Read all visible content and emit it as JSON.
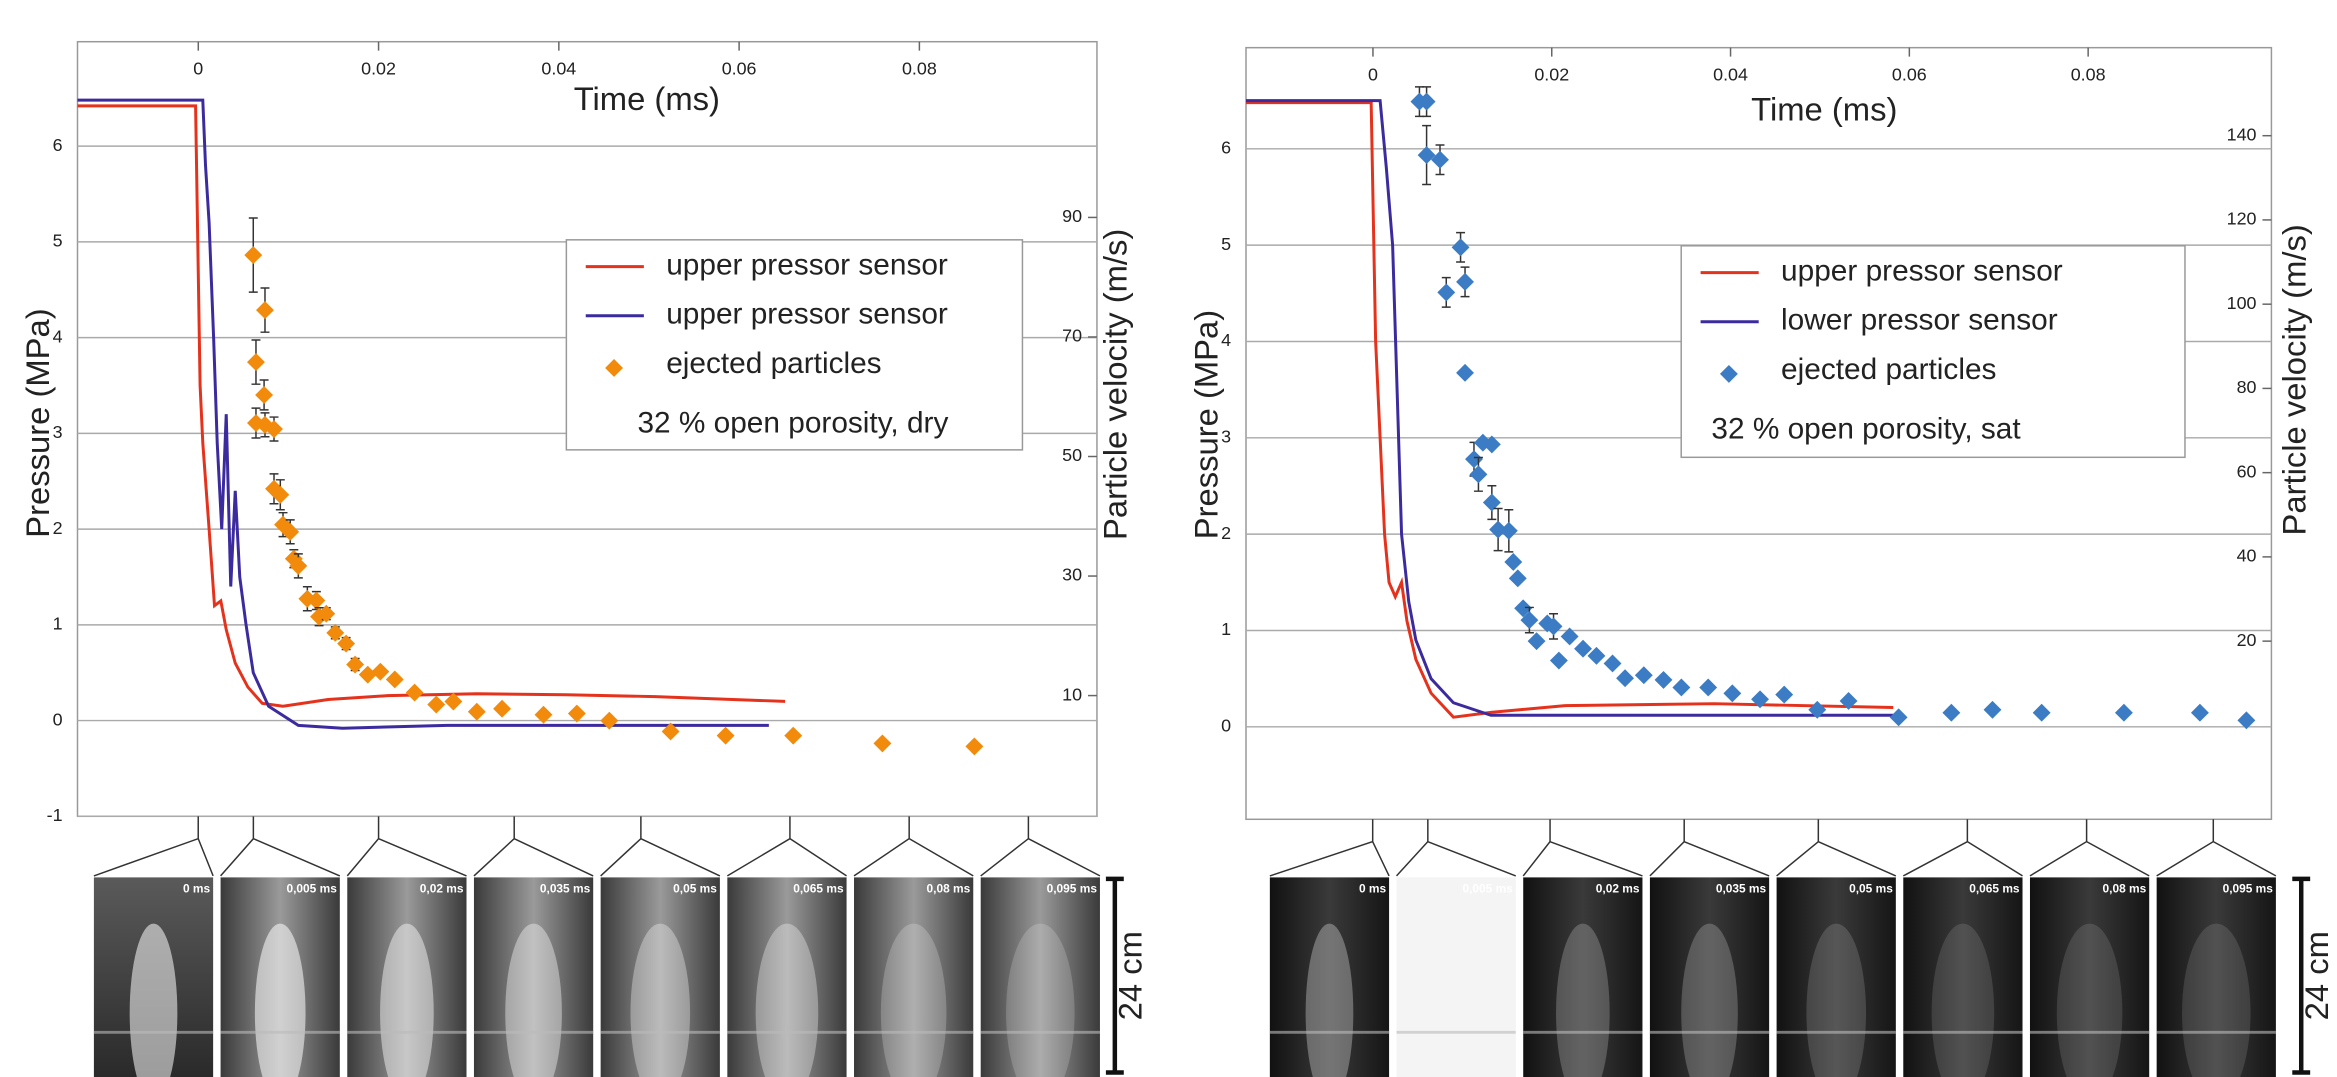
{
  "chart_data": [
    {
      "type": "line",
      "xlabel": "Time (ms)",
      "ylabel": "Pressure (MPa)",
      "y2label": "Particle velocity (m/s)",
      "xlim": [
        -0.0134,
        0.0997
      ],
      "xticks": [
        0,
        0.02,
        0.04,
        0.06,
        0.08
      ],
      "ylim": [
        -1,
        7.09
      ],
      "yticks": [
        -1,
        0,
        1,
        2,
        3,
        4,
        5,
        6
      ],
      "y2lim": [
        -10.2,
        119.4
      ],
      "y2ticks": [
        10,
        30,
        50,
        70,
        90
      ],
      "grid": true,
      "annotation": "32 % open porosity, dry",
      "series": [
        {
          "name": "upper pressor sensor",
          "color": "#e5321c",
          "x": [
            -0.0134,
            -0.0003,
            0.0002,
            0.0005,
            0.0012,
            0.0018,
            0.0025,
            0.0031,
            0.0041,
            0.0055,
            0.0071,
            0.0094,
            0.0144,
            0.021,
            0.0309,
            0.0408,
            0.0507,
            0.0651
          ],
          "values": [
            6.42,
            6.42,
            3.5,
            2.9,
            2.0,
            1.2,
            1.25,
            0.95,
            0.6,
            0.35,
            0.18,
            0.15,
            0.22,
            0.26,
            0.28,
            0.27,
            0.25,
            0.2
          ]
        },
        {
          "name": "upper pressor sensor",
          "color": "#3b2b9e",
          "x": [
            -0.0134,
            0.0005,
            0.0008,
            0.0012,
            0.0017,
            0.0021,
            0.0026,
            0.0031,
            0.0036,
            0.0041,
            0.0046,
            0.0053,
            0.0061,
            0.0078,
            0.0111,
            0.016,
            0.0276,
            0.0441,
            0.0633
          ],
          "values": [
            6.48,
            6.48,
            5.8,
            5.2,
            4.0,
            2.9,
            2.0,
            3.2,
            1.4,
            2.4,
            1.5,
            1.0,
            0.5,
            0.15,
            -0.05,
            -0.08,
            -0.05,
            -0.05,
            -0.05
          ]
        },
        {
          "name": "ejected particles",
          "color": "#f28a0c",
          "axis": "y2",
          "marker": "diamond",
          "x": [
            0.0061,
            0.0074,
            0.0064,
            0.0073,
            0.0064,
            0.0074,
            0.0084,
            0.0084,
            0.0091,
            0.0094,
            0.0102,
            0.0106,
            0.0111,
            0.0121,
            0.0131,
            0.0134,
            0.0142,
            0.0152,
            0.0164,
            0.0174,
            0.0188,
            0.0202,
            0.0218,
            0.024,
            0.0264,
            0.0283,
            0.0309,
            0.0337,
            0.0383,
            0.042,
            0.0456,
            0.0524,
            0.0585,
            0.066,
            0.0759,
            0.0861
          ],
          "values": [
            83.7,
            74.5,
            65.8,
            60.3,
            55.6,
            55.3,
            54.6,
            44.6,
            43.6,
            38.6,
            37.4,
            32.9,
            31.7,
            26.2,
            25.9,
            23.2,
            23.7,
            20.5,
            18.7,
            15.2,
            13.5,
            14.0,
            12.7,
            10.5,
            8.5,
            9.0,
            7.3,
            7.8,
            6.8,
            7.0,
            5.8,
            4.0,
            3.3,
            3.3,
            2.0,
            1.5
          ],
          "errors": [
            6.2,
            3.7,
            3.7,
            2.5,
            2.5,
            2.0,
            2.0,
            2.5,
            2.5,
            2.0,
            2.0,
            1.5,
            2.0,
            2.0,
            1.5,
            1.5,
            1.0,
            1.0,
            1.0,
            1.0,
            null,
            null,
            null,
            null,
            null,
            null,
            null,
            null,
            null,
            null,
            null,
            null,
            null,
            null,
            null,
            null
          ]
        }
      ],
      "frame_labels": [
        "0 ms",
        "0,005 ms",
        "0,02 ms",
        "0,035 ms",
        "0,05 ms",
        "0,065 ms",
        "0,08 ms",
        "0,095 ms"
      ],
      "scale_label": "24 cm"
    },
    {
      "type": "line",
      "xlabel": "Time (ms)",
      "ylabel": "Pressure (MPa)",
      "y2label": "Particle velocity (m/s)",
      "xlim": [
        -0.0142,
        0.1005
      ],
      "xticks": [
        0,
        0.02,
        0.04,
        0.06,
        0.08
      ],
      "ylim": [
        -0.96,
        7.05
      ],
      "yticks": [
        0,
        1,
        2,
        3,
        4,
        5,
        6
      ],
      "y2lim": [
        -22.3,
        160.9
      ],
      "y2ticks": [
        20,
        40,
        60,
        80,
        100,
        120,
        140
      ],
      "grid": true,
      "annotation": "32 % open porosity, sat",
      "series": [
        {
          "name": "upper pressor sensor",
          "color": "#e5321c",
          "x": [
            -0.0142,
            -0.0002,
            0.0003,
            0.0008,
            0.0013,
            0.0018,
            0.0025,
            0.0032,
            0.0038,
            0.0048,
            0.0065,
            0.009,
            0.0132,
            0.0215,
            0.0382,
            0.0582
          ],
          "values": [
            6.48,
            6.48,
            4.0,
            3.0,
            2.0,
            1.5,
            1.35,
            1.5,
            1.1,
            0.7,
            0.35,
            0.1,
            0.15,
            0.22,
            0.24,
            0.2
          ]
        },
        {
          "name": "lower pressor sensor",
          "color": "#3b2b9e",
          "x": [
            -0.0142,
            0.0008,
            0.0015,
            0.0022,
            0.0027,
            0.0032,
            0.004,
            0.0048,
            0.0065,
            0.009,
            0.0132,
            0.0215,
            0.0382,
            0.0582
          ],
          "values": [
            6.5,
            6.5,
            5.8,
            5.0,
            3.5,
            2.0,
            1.3,
            0.9,
            0.5,
            0.25,
            0.12,
            0.12,
            0.12,
            0.12
          ]
        },
        {
          "name": "ejected particles",
          "color": "#3b7cc4",
          "axis": "y2",
          "marker": "diamond",
          "x": [
            0.0052,
            0.006,
            0.006,
            0.0075,
            0.0082,
            0.0098,
            0.0103,
            0.0103,
            0.0113,
            0.0118,
            0.0123,
            0.0133,
            0.0133,
            0.014,
            0.0152,
            0.0157,
            0.0162,
            0.0168,
            0.0175,
            0.0183,
            0.0195,
            0.0202,
            0.0208,
            0.022,
            0.0235,
            0.025,
            0.0268,
            0.0282,
            0.0303,
            0.0325,
            0.0345,
            0.0375,
            0.0402,
            0.0433,
            0.046,
            0.0497,
            0.0532,
            0.0588,
            0.0647,
            0.0693,
            0.0748,
            0.084,
            0.0925,
            0.0977
          ],
          "values": [
            148.1,
            148.1,
            135.4,
            134.3,
            102.8,
            113.5,
            105.3,
            83.7,
            63.2,
            59.6,
            67.1,
            66.7,
            52.9,
            46.5,
            46.2,
            38.8,
            34.9,
            27.8,
            25.0,
            20.0,
            24.2,
            23.5,
            15.4,
            21.1,
            18.2,
            16.5,
            14.7,
            11.2,
            11.9,
            10.8,
            9.0,
            9.0,
            7.6,
            6.2,
            7.3,
            3.7,
            5.8,
            1.9,
            3.0,
            3.7,
            3.0,
            3.0,
            3.0,
            1.2
          ],
          "errors": [
            3.5,
            3.5,
            7.0,
            3.5,
            3.5,
            3.5,
            3.5,
            null,
            4.0,
            4.0,
            null,
            null,
            4.0,
            5.0,
            5.0,
            null,
            null,
            null,
            3.0,
            null,
            null,
            3.0,
            null,
            null,
            null,
            null,
            null,
            null,
            null,
            null,
            null,
            null,
            null,
            null,
            null,
            null,
            null,
            null,
            null,
            null,
            null,
            null,
            null,
            null
          ]
        }
      ],
      "frame_labels": [
        "0 ms",
        "0,005 ms",
        "0,02 ms",
        "0,035 ms",
        "0,05 ms",
        "0,065 ms",
        "0,08 ms",
        "0,095 ms"
      ],
      "scale_label": "24 cm"
    }
  ]
}
